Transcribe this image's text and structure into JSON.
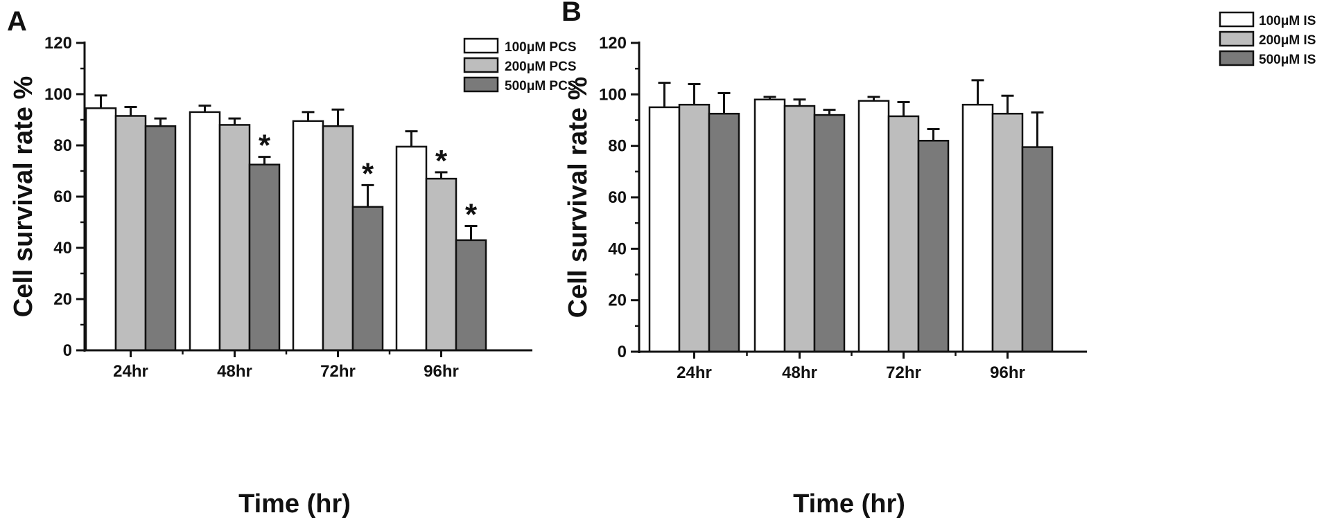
{
  "chart_data": [
    {
      "type": "bar",
      "panel_label": "A",
      "categories": [
        "24hr",
        "48hr",
        "72hr",
        "96hr"
      ],
      "xlabel": "Time (hr)",
      "ylabel": "Cell survival rate %",
      "ylim": [
        0,
        120
      ],
      "yticks": [
        0,
        20,
        40,
        60,
        80,
        100,
        120
      ],
      "legend_position": "top-right",
      "series": [
        {
          "name": "100μM PCS",
          "color": "#ffffff",
          "values": [
            94.5,
            93,
            89.5,
            79.5
          ],
          "errors": [
            5,
            2.5,
            3.5,
            6
          ],
          "significant": [
            false,
            false,
            false,
            false
          ]
        },
        {
          "name": "200μM PCS",
          "color": "#bdbdbd",
          "values": [
            91.5,
            88,
            87.5,
            67
          ],
          "errors": [
            3.5,
            2.5,
            6.5,
            2.5
          ],
          "significant": [
            false,
            false,
            false,
            true
          ]
        },
        {
          "name": "500μM PCS",
          "color": "#7a7a7a",
          "values": [
            87.5,
            72.5,
            56,
            43
          ],
          "errors": [
            3,
            3,
            8.5,
            5.5
          ],
          "significant": [
            false,
            true,
            true,
            true
          ]
        }
      ],
      "significance_marker": "*"
    },
    {
      "type": "bar",
      "panel_label": "B",
      "categories": [
        "24hr",
        "48hr",
        "72hr",
        "96hr"
      ],
      "xlabel": "Time (hr)",
      "ylabel": "Cell survival rate %",
      "ylim": [
        0,
        120
      ],
      "yticks": [
        0,
        20,
        40,
        60,
        80,
        100,
        120
      ],
      "legend_position": "top-right",
      "series": [
        {
          "name": "100μM IS",
          "color": "#ffffff",
          "values": [
            95,
            98,
            97.5,
            96
          ],
          "errors": [
            9.5,
            1,
            1.5,
            9.5
          ],
          "significant": [
            false,
            false,
            false,
            false
          ]
        },
        {
          "name": "200μM IS",
          "color": "#bdbdbd",
          "values": [
            96,
            95.5,
            91.5,
            92.5
          ],
          "errors": [
            8,
            2.5,
            5.5,
            7
          ],
          "significant": [
            false,
            false,
            false,
            false
          ]
        },
        {
          "name": "500μM IS",
          "color": "#7a7a7a",
          "values": [
            92.5,
            92,
            82,
            79.5
          ],
          "errors": [
            8,
            2,
            4.5,
            13.5
          ],
          "significant": [
            false,
            false,
            false,
            false
          ]
        }
      ],
      "significance_marker": "*"
    }
  ]
}
